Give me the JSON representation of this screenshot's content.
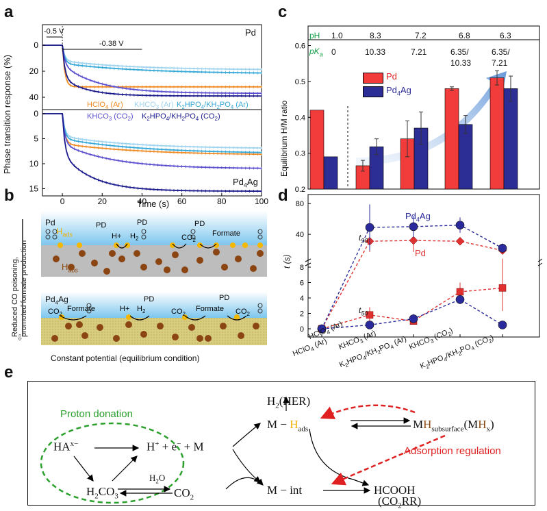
{
  "letters": {
    "a": "a",
    "b": "b",
    "c": "c",
    "d": "d",
    "e": "e"
  },
  "panel_a": {
    "ylabel": "Phase transition response (%)",
    "xlabel": "Time (s)",
    "ann_step1": "-0.5 V",
    "ann_step2": "-0.38 V",
    "top_label": "Pd",
    "bottom_label": "Pd",
    "bottom_label_sub": "4",
    "bottom_label_tail": "Ag",
    "legend_hclo4": "HClO",
    "legend_khco3_ar": "KHCO",
    "legend_k2hpo4_ar": "K",
    "legend_khco3_co2": "KHCO",
    "legend_k2hpo4_co2": "K",
    "x_ticks": [
      "0",
      "20",
      "40",
      "60",
      "80",
      "100"
    ],
    "top_y_ticks": [
      "0",
      "20",
      "40"
    ],
    "bottom_y_ticks": [
      "0",
      "5",
      "10",
      "15"
    ],
    "colors": {
      "hclo4": "#f08a24",
      "khco3_ar": "#9fd4ee",
      "k2hpo4_ar": "#36a8d8",
      "khco3_co2": "#5a4fcf",
      "k2hpo4_co2": "#1a1a8c"
    }
  },
  "panel_b": {
    "side_label_1": "Reduced CO poisoning,",
    "side_label_2": "promoted formate production",
    "top_metal": "Pd",
    "bottom_metal": "Pd",
    "bottom_metal_sub": "4",
    "bottom_metal_tail": "Ag",
    "h_ads": "H",
    "h_ads_sub": "ads",
    "h_abs": "H",
    "h_abs_sub": "abs",
    "pd": "PD",
    "hplus": "H",
    "h2": "H",
    "co2": "CO",
    "formate": "Formate",
    "caption": "Constant potential (equilibrium condition)"
  },
  "panel_c": {
    "ylabel": "Equilibrium H/M ratio",
    "ph_label": "pH",
    "pka_label": "pK",
    "pka_sub": "a",
    "ph_values": [
      "1.0",
      "8.3",
      "7.2",
      "6.8",
      "6.3"
    ],
    "pka_values": [
      "0",
      "10.33",
      "7.21",
      "6.35/\n10.33",
      "6.35/\n7.21"
    ],
    "legend": [
      "Pd",
      "Pd4Ag"
    ],
    "y_ticks": [
      "0.2",
      "0.3",
      "0.4",
      "0.5",
      "0.6"
    ]
  },
  "panel_d": {
    "ylabel": "t (s)",
    "t90": "t",
    "t90_sub": "90",
    "t50": "t",
    "t50_sub": "50",
    "series_pd": "Pd",
    "series_pd4ag": "Pd4Ag",
    "upper_ticks": [
      "40",
      "80"
    ],
    "lower_ticks": [
      "0",
      "2",
      "4",
      "6",
      "8"
    ],
    "x_labels": [
      "HClO4 (Ar)",
      "KHCO3 (Ar)",
      "K2HPO4/KH2PO4 (Ar)",
      "KHCO3 (CO2)",
      "K2HPO4/KH2PO4 (CO2)"
    ]
  },
  "panel_e": {
    "proton_donation": "Proton donation",
    "adsorption_regulation": "Adsorption regulation",
    "hax": "HA",
    "hax_sup": "x−",
    "h2co3": "H",
    "h2o": "H",
    "co2": "CO",
    "hplus_eq": "+ e",
    "m": "+ M",
    "m_hads": "M −",
    "hads_h": "H",
    "hads_sub": "ads",
    "h2_her": "H",
    "m_int": "M − int",
    "mh_sub": "M",
    "mh_h": "H",
    "mh_tail": "subsurface",
    "hcooh": "HCOOH",
    "co2rr": "(CO"
  },
  "chart_data": [
    {
      "type": "bar",
      "title": "",
      "xlabel": "",
      "ylabel": "Equilibrium H/M ratio",
      "ylim": [
        0.2,
        0.6
      ],
      "categories": [
        "HClO4 (Ar)",
        "KHCO3 (Ar)",
        "K2HPO4/KH2PO4 (Ar)",
        "KHCO3 (CO2)",
        "K2HPO4/KH2PO4 (CO2)"
      ],
      "series": [
        {
          "name": "Pd",
          "color": "#f23c3c",
          "values": [
            0.42,
            0.265,
            0.34,
            0.48,
            0.51
          ],
          "errors": [
            0,
            0.015,
            0.05,
            0.005,
            0.02
          ]
        },
        {
          "name": "Pd4Ag",
          "color": "#2d2d96",
          "values": [
            0.29,
            0.318,
            0.37,
            0.38,
            0.48
          ],
          "errors": [
            0,
            0.022,
            0.045,
            0.025,
            0.035
          ]
        }
      ],
      "legend": "top-left"
    },
    {
      "type": "scatter",
      "title": "",
      "ylabel": "t (s)",
      "categories": [
        "HClO4 (Ar)",
        "KHCO3 (Ar)",
        "K2HPO4/KH2PO4 (Ar)",
        "KHCO3 (CO2)",
        "K2HPO4/KH2PO4 (CO2)"
      ],
      "series": [
        {
          "name": "Pd t90",
          "color": "#e03030",
          "values": [
            0,
            31,
            32,
            31,
            19
          ],
          "errors": [
            0,
            14,
            15,
            2,
            3
          ]
        },
        {
          "name": "Pd4Ag t90",
          "color": "#2a2a9c",
          "values": [
            0,
            49,
            50,
            52,
            22
          ],
          "errors": [
            0,
            30,
            14,
            10,
            6
          ]
        },
        {
          "name": "Pd t50",
          "color": "#e03030",
          "values": [
            0,
            1.8,
            1.0,
            4.8,
            5.3
          ],
          "errors": [
            0,
            1.0,
            0.4,
            1.2,
            3.0
          ]
        },
        {
          "name": "Pd4Ag t50",
          "color": "#2a2a9c",
          "values": [
            0,
            0.5,
            1.3,
            3.8,
            0.5
          ],
          "errors": [
            0,
            0.2,
            0.6,
            0.6,
            0.3
          ]
        }
      ],
      "ylim_lower": [
        0,
        8
      ],
      "ylim_upper": [
        8,
        90
      ]
    }
  ]
}
